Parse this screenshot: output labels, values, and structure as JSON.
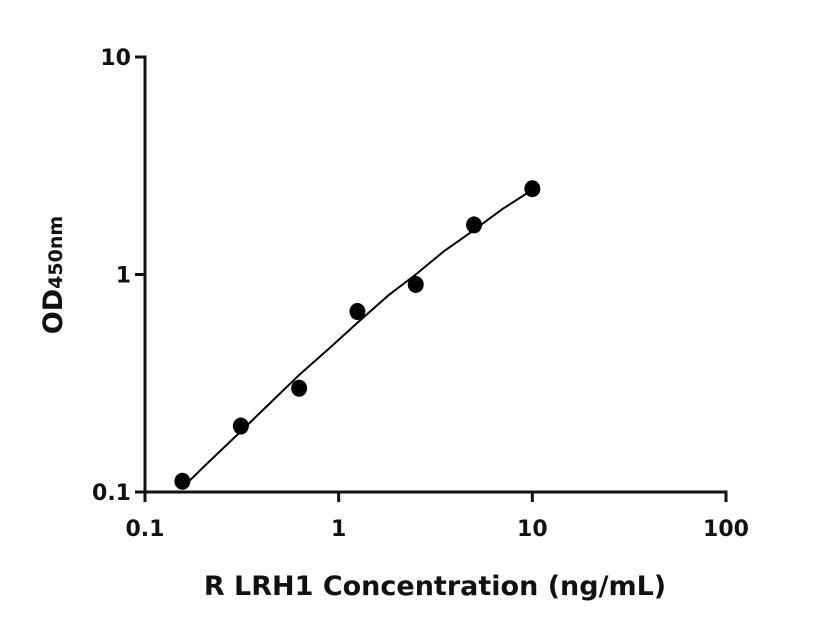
{
  "chart_data": {
    "type": "scatter",
    "xlabel": "R LRH1 Concentration (ng/mL)",
    "ylabel": "OD",
    "ylabel_sub": "450nm",
    "log_x": true,
    "log_y": true,
    "xlim": [
      0.1,
      100
    ],
    "xticks": [
      0.1,
      1,
      10,
      100
    ],
    "ylim": [
      0.1,
      10
    ],
    "yticks": [
      0.1,
      1,
      10
    ],
    "x": [
      0.156,
      0.3125,
      0.625,
      1.25,
      2.5,
      5,
      10
    ],
    "series": [
      {
        "color": "#000000",
        "values": [
          0.112,
          0.201,
          0.3,
          0.676,
          0.9,
          1.69,
          2.48
        ]
      }
    ],
    "curve": {
      "color": "#000000",
      "x": [
        0.16,
        0.2,
        0.3125,
        0.45,
        0.625,
        0.9,
        1.25,
        1.8,
        2.5,
        3.5,
        5,
        7,
        10
      ],
      "values": [
        0.107,
        0.13,
        0.19,
        0.26,
        0.345,
        0.46,
        0.6,
        0.8,
        1.0,
        1.28,
        1.6,
        2.0,
        2.45
      ]
    }
  }
}
